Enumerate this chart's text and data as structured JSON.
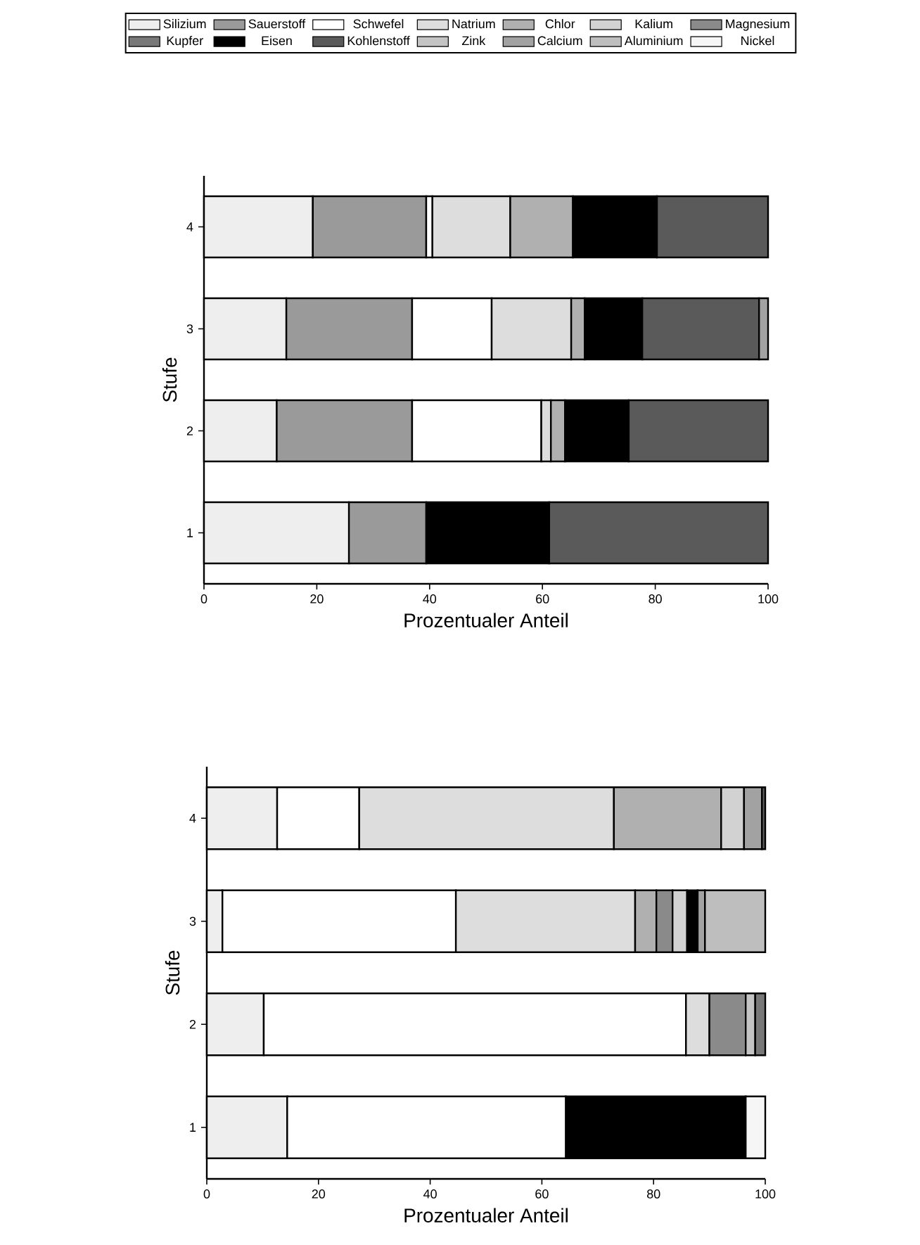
{
  "chart_data": [
    {
      "type": "bar",
      "orientation": "horizontal",
      "stacked": true,
      "categories": [
        "4",
        "3",
        "2",
        "1"
      ],
      "xlim": [
        0,
        100
      ],
      "xticks": [
        0,
        20,
        40,
        60,
        80,
        100
      ],
      "xlabel": "Prozentualer Anteil",
      "ylabel": "Stufe",
      "legend": "top",
      "series": [
        {
          "name": "Silizium",
          "color": "#eeeeee",
          "values": [
            19.3,
            14.6,
            12.9,
            25.7
          ]
        },
        {
          "name": "Sauerstoff",
          "color": "#9a9a9a",
          "values": [
            20.1,
            22.3,
            24.0,
            13.7
          ]
        },
        {
          "name": "Schwefel",
          "color": "#ffffff",
          "values": [
            1.1,
            14.1,
            22.9,
            null
          ]
        },
        {
          "name": "Natrium",
          "color": "#dddddd",
          "values": [
            13.8,
            14.1,
            1.7,
            null
          ]
        },
        {
          "name": "Chlor",
          "color": "#b0b0b0",
          "values": [
            11.1,
            2.4,
            2.5,
            null
          ]
        },
        {
          "name": "Kalium",
          "color": "#d2d2d2",
          "values": [
            null,
            null,
            null,
            null
          ]
        },
        {
          "name": "Magnesium",
          "color": "#8a8a8a",
          "values": [
            null,
            null,
            null,
            null
          ]
        },
        {
          "name": "Kupfer",
          "color": "#787878",
          "values": [
            null,
            null,
            null,
            null
          ]
        },
        {
          "name": "Eisen",
          "color": "#000000",
          "values": [
            14.9,
            10.2,
            11.3,
            21.8
          ]
        },
        {
          "name": "Kohlenstoff",
          "color": "#5a5a5a",
          "values": [
            19.7,
            20.7,
            24.7,
            38.8
          ]
        },
        {
          "name": "Zink",
          "color": "#c4c4c4",
          "values": [
            null,
            null,
            null,
            null
          ]
        },
        {
          "name": "Calcium",
          "color": "#a2a2a2",
          "values": [
            null,
            1.6,
            null,
            null
          ]
        },
        {
          "name": "Aluminium",
          "color": "#bebebe",
          "values": [
            null,
            null,
            null,
            null
          ]
        },
        {
          "name": "Nickel",
          "color": "#f6f6f6",
          "values": [
            null,
            null,
            null,
            null
          ]
        }
      ]
    },
    {
      "type": "bar",
      "orientation": "horizontal",
      "stacked": true,
      "categories": [
        "4",
        "3",
        "2",
        "1"
      ],
      "xlim": [
        0,
        100
      ],
      "xticks": [
        0,
        20,
        40,
        60,
        80,
        100
      ],
      "xlabel": "Prozentualer Anteil",
      "ylabel": "Stufe",
      "series": [
        {
          "color": "#eeeeee",
          "values": [
            12.6,
            2.8,
            10.2,
            14.4
          ]
        },
        {
          "color": "#ffffff",
          "values": [
            14.7,
            41.8,
            75.6,
            49.9
          ]
        },
        {
          "color": "#dddddd",
          "values": [
            45.6,
            32.1,
            4.2,
            null
          ]
        },
        {
          "color": "#b0b0b0",
          "values": [
            19.2,
            3.8,
            null,
            null
          ]
        },
        {
          "color": "#8a8a8a",
          "values": [
            null,
            2.9,
            6.5,
            null
          ]
        },
        {
          "color": "#d2d2d2",
          "values": [
            4.1,
            2.6,
            null,
            null
          ]
        },
        {
          "color": "#c4c4c4",
          "values": [
            null,
            null,
            1.7,
            null
          ]
        },
        {
          "color": "#787878",
          "values": [
            null,
            null,
            1.8,
            null
          ]
        },
        {
          "color": "#000000",
          "values": [
            null,
            1.9,
            null,
            32.2
          ]
        },
        {
          "color": "#a2a2a2",
          "values": [
            3.2,
            1.3,
            null,
            null
          ]
        },
        {
          "color": "#5a5a5a",
          "values": [
            0.6,
            null,
            null,
            null
          ]
        },
        {
          "color": "#bebebe",
          "values": [
            null,
            10.8,
            null,
            null
          ]
        },
        {
          "color": "#f6f6f6",
          "values": [
            null,
            null,
            null,
            3.5
          ]
        }
      ]
    }
  ]
}
